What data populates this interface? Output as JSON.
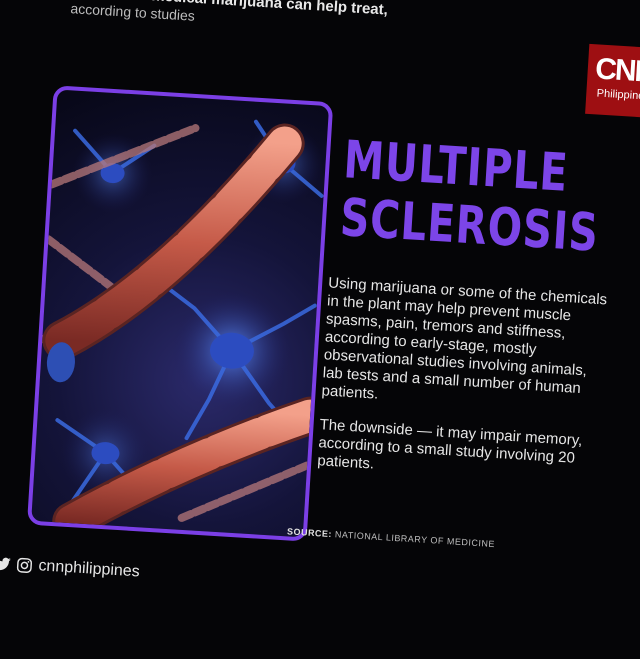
{
  "header": {
    "line1": "conditions medical marijuana can help treat,",
    "line2": "according to studies"
  },
  "logo": {
    "brand": "CNN",
    "region": "Philippines",
    "color": "#9e0f12"
  },
  "photo": {
    "subject": "neurons with myelinated nerve fibers",
    "frame_color": "#7b3fe6"
  },
  "title": {
    "line1": "MULTIPLE",
    "line2": "SCLEROSIS",
    "color": "#7c45e8"
  },
  "body": {
    "paragraph1": "Using marijuana or some of the chemicals in the plant may help prevent muscle spasms, pain, tremors and stiffness, according to early-stage, mostly observational studies involving animals, lab tests and a small number of human patients.",
    "paragraph2": "The downside — it may impair memory, according to a small study involving 20 patients."
  },
  "source": {
    "label": "SOURCE:",
    "text": "NATIONAL LIBRARY OF MEDICINE"
  },
  "social": {
    "icons": [
      "twitter-icon",
      "instagram-icon"
    ],
    "handle": "cnnphilippines"
  }
}
